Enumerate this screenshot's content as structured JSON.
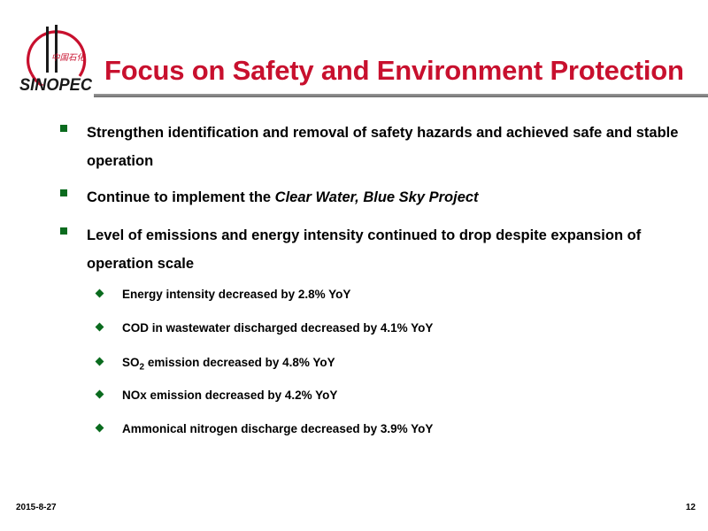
{
  "logo": {
    "wordmark": "SINOPEC",
    "chinese": "中国石化",
    "colors": {
      "red": "#c8102e",
      "black": "#1a1a1a"
    }
  },
  "slide": {
    "title": "Focus on Safety and Environment Protection",
    "accent_color": "#c8102e",
    "bullet_color": "#0a6b1e",
    "bullets": [
      {
        "text": "Strengthen identification and removal of safety hazards and achieved safe and stable operation"
      },
      {
        "prefix": "Continue to implement the ",
        "emphasis": "Clear Water, Blue Sky Project"
      },
      {
        "text": "Level of emissions and energy intensity continued to drop despite expansion of operation scale"
      }
    ],
    "sub_bullets": [
      {
        "text": "Energy intensity decreased by 2.8% YoY"
      },
      {
        "text": "COD in wastewater discharged decreased by 4.1% YoY"
      },
      {
        "prefix": "SO",
        "subscript": "2",
        "suffix": " emission decreased by 4.8% YoY"
      },
      {
        "text": "NOx emission decreased by 4.2% YoY"
      },
      {
        "text": "Ammonical nitrogen discharge decreased by 3.9% YoY"
      }
    ]
  },
  "footer": {
    "date": "2015-8-27",
    "page_number": "12"
  }
}
